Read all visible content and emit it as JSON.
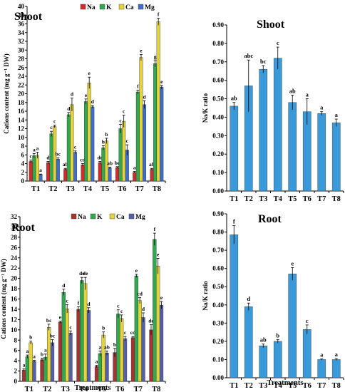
{
  "chart_data": [
    {
      "panel": "shoot-cations",
      "type": "bar",
      "title": "Shoot",
      "ylabel": "Cations content (mg g⁻¹ DW)",
      "xlabel": "",
      "categories": [
        "T1",
        "T2",
        "T3",
        "T4",
        "T5",
        "T6",
        "T7",
        "T8"
      ],
      "ylim": [
        0,
        40
      ],
      "yticks": [
        0,
        2,
        4,
        6,
        8,
        10,
        12,
        14,
        16,
        18,
        20,
        22,
        24,
        26,
        28,
        30,
        32,
        34,
        36,
        38,
        40
      ],
      "legend_position": "top",
      "series": [
        {
          "name": "Na",
          "color": "#d42a2a",
          "values": [
            4.5,
            4.2,
            2.7,
            3.7,
            4.2,
            3.1,
            2.0,
            2.7
          ],
          "errors": [
            0.3,
            0.3,
            0.2,
            0.3,
            0.3,
            0.2,
            0.2,
            0.2
          ],
          "letters": [
            "c",
            "d",
            "ab",
            "cd",
            "de",
            "bc",
            "a",
            "ab"
          ]
        },
        {
          "name": "K",
          "color": "#2fa84f",
          "values": [
            5.8,
            10.8,
            15.2,
            18.2,
            7.6,
            12.0,
            20.4,
            26.9
          ],
          "errors": [
            0.5,
            0.6,
            0.5,
            0.6,
            0.5,
            1.0,
            0.4,
            0.7
          ],
          "letters": [
            "a",
            "c",
            "d",
            "e",
            "b",
            "c",
            "f",
            "g"
          ]
        },
        {
          "name": "Ca",
          "color": "#e4d43a",
          "values": [
            5.9,
            12.5,
            17.5,
            22.5,
            9.2,
            13.7,
            28.3,
            36.5
          ],
          "errors": [
            0.7,
            0.3,
            1.5,
            1.3,
            0.6,
            1.4,
            0.7,
            0.8
          ],
          "letters": [
            "a",
            "c",
            "d",
            "e",
            "b",
            "c",
            "e",
            "f"
          ]
        },
        {
          "name": "Mg",
          "color": "#3f6ec8",
          "values": [
            1.5,
            5.0,
            6.6,
            17.0,
            3.0,
            7.1,
            17.5,
            21.5
          ],
          "errors": [
            0.1,
            0.3,
            0.3,
            0.3,
            0.2,
            1.2,
            0.9,
            0.4
          ],
          "letters": [
            "a",
            "bc",
            "c",
            "d",
            "ab",
            "c",
            "d",
            "e"
          ]
        }
      ]
    },
    {
      "panel": "shoot-ratio",
      "type": "bar",
      "title": "Shoot",
      "ylabel": "Na/K ratio",
      "xlabel": "",
      "categories": [
        "T1",
        "T2",
        "T3",
        "T4",
        "T5",
        "T6",
        "T7",
        "T8"
      ],
      "ylim": [
        0,
        0.9
      ],
      "yticks": [
        "0.00",
        "0.10",
        "0.20",
        "0.30",
        "0.40",
        "0.50",
        "0.60",
        "0.70",
        "0.80",
        "0.90"
      ],
      "series": [
        {
          "name": "",
          "color": "#3a9ad9",
          "values": [
            0.46,
            0.57,
            0.66,
            0.72,
            0.48,
            0.43,
            0.42,
            0.37
          ],
          "errors": [
            0.02,
            0.14,
            0.02,
            0.06,
            0.04,
            0.07,
            0.01,
            0.02
          ],
          "letters": [
            "ab",
            "abc",
            "bc",
            "c",
            "ab",
            "a",
            "a",
            "a"
          ]
        }
      ]
    },
    {
      "panel": "root-cations",
      "type": "bar",
      "title": "Root",
      "ylabel": "Cations content (mg g⁻¹ DW)",
      "xlabel": "Treatments",
      "categories": [
        "T1",
        "T2",
        "T3",
        "T4",
        "T5",
        "T6",
        "T7",
        "T8"
      ],
      "ylim": [
        0,
        32
      ],
      "yticks": [
        0,
        2,
        4,
        6,
        8,
        10,
        12,
        14,
        16,
        18,
        20,
        22,
        24,
        26,
        28,
        30,
        32
      ],
      "legend_position": "top",
      "series": [
        {
          "name": "Na",
          "color": "#a83232",
          "values": [
            2.2,
            4.2,
            11.5,
            14.0,
            2.9,
            5.6,
            8.5,
            10.0
          ],
          "errors": [
            0.2,
            0.3,
            0.2,
            0.5,
            0.2,
            0.8,
            0.2,
            1.0
          ],
          "letters": [
            "a",
            "b",
            "e",
            "f",
            "a",
            "b",
            "cd",
            "de"
          ]
        },
        {
          "name": "K",
          "color": "#2fa84f",
          "values": [
            4.8,
            4.7,
            17.3,
            19.6,
            5.4,
            13.1,
            20.5,
            27.6
          ],
          "errors": [
            0.3,
            0.6,
            0.6,
            0.6,
            0.5,
            0.8,
            0.3,
            1.2
          ],
          "letters": [
            "a",
            "a",
            "d",
            "de",
            "a",
            "c",
            "e",
            "f"
          ]
        },
        {
          "name": "Ca",
          "color": "#e4d43a",
          "values": [
            7.5,
            10.5,
            14.1,
            19.0,
            9.0,
            12.2,
            15.7,
            22.4
          ],
          "errors": [
            0.3,
            0.6,
            0.8,
            1.2,
            0.6,
            0.7,
            0.6,
            1.5
          ],
          "letters": [
            "b",
            "bc",
            "c",
            "de",
            "b",
            "c",
            "cd",
            "e"
          ]
        },
        {
          "name": "Mg",
          "color": "#5560a8",
          "values": [
            3.9,
            7.5,
            9.4,
            13.8,
            5.5,
            8.3,
            12.4,
            14.8
          ],
          "errors": [
            0.2,
            0.6,
            0.4,
            0.5,
            0.4,
            0.4,
            0.9,
            0.7
          ],
          "letters": [
            "a",
            "bc",
            "c",
            "d",
            "ab",
            "c",
            "d",
            "e"
          ]
        }
      ]
    },
    {
      "panel": "root-ratio",
      "type": "bar",
      "title": "Root",
      "ylabel": "Na/K ratio",
      "xlabel": "Treatments",
      "categories": [
        "T1",
        "T2",
        "T3",
        "T4",
        "T5",
        "T6",
        "T7",
        "T8"
      ],
      "ylim": [
        0,
        0.9
      ],
      "yticks": [
        "0.00",
        "0.10",
        "0.20",
        "0.30",
        "0.40",
        "0.50",
        "0.60",
        "0.70",
        "0.80",
        "0.90"
      ],
      "series": [
        {
          "name": "",
          "color": "#3a9ad9",
          "values": [
            0.785,
            0.39,
            0.175,
            0.2,
            0.57,
            0.265,
            0.1,
            0.1
          ],
          "errors": [
            0.05,
            0.02,
            0.01,
            0.01,
            0.035,
            0.025,
            0.003,
            0.005
          ],
          "letters": [
            "f",
            "d",
            "ab",
            "b",
            "e",
            "c",
            "a",
            "a"
          ]
        }
      ]
    }
  ]
}
